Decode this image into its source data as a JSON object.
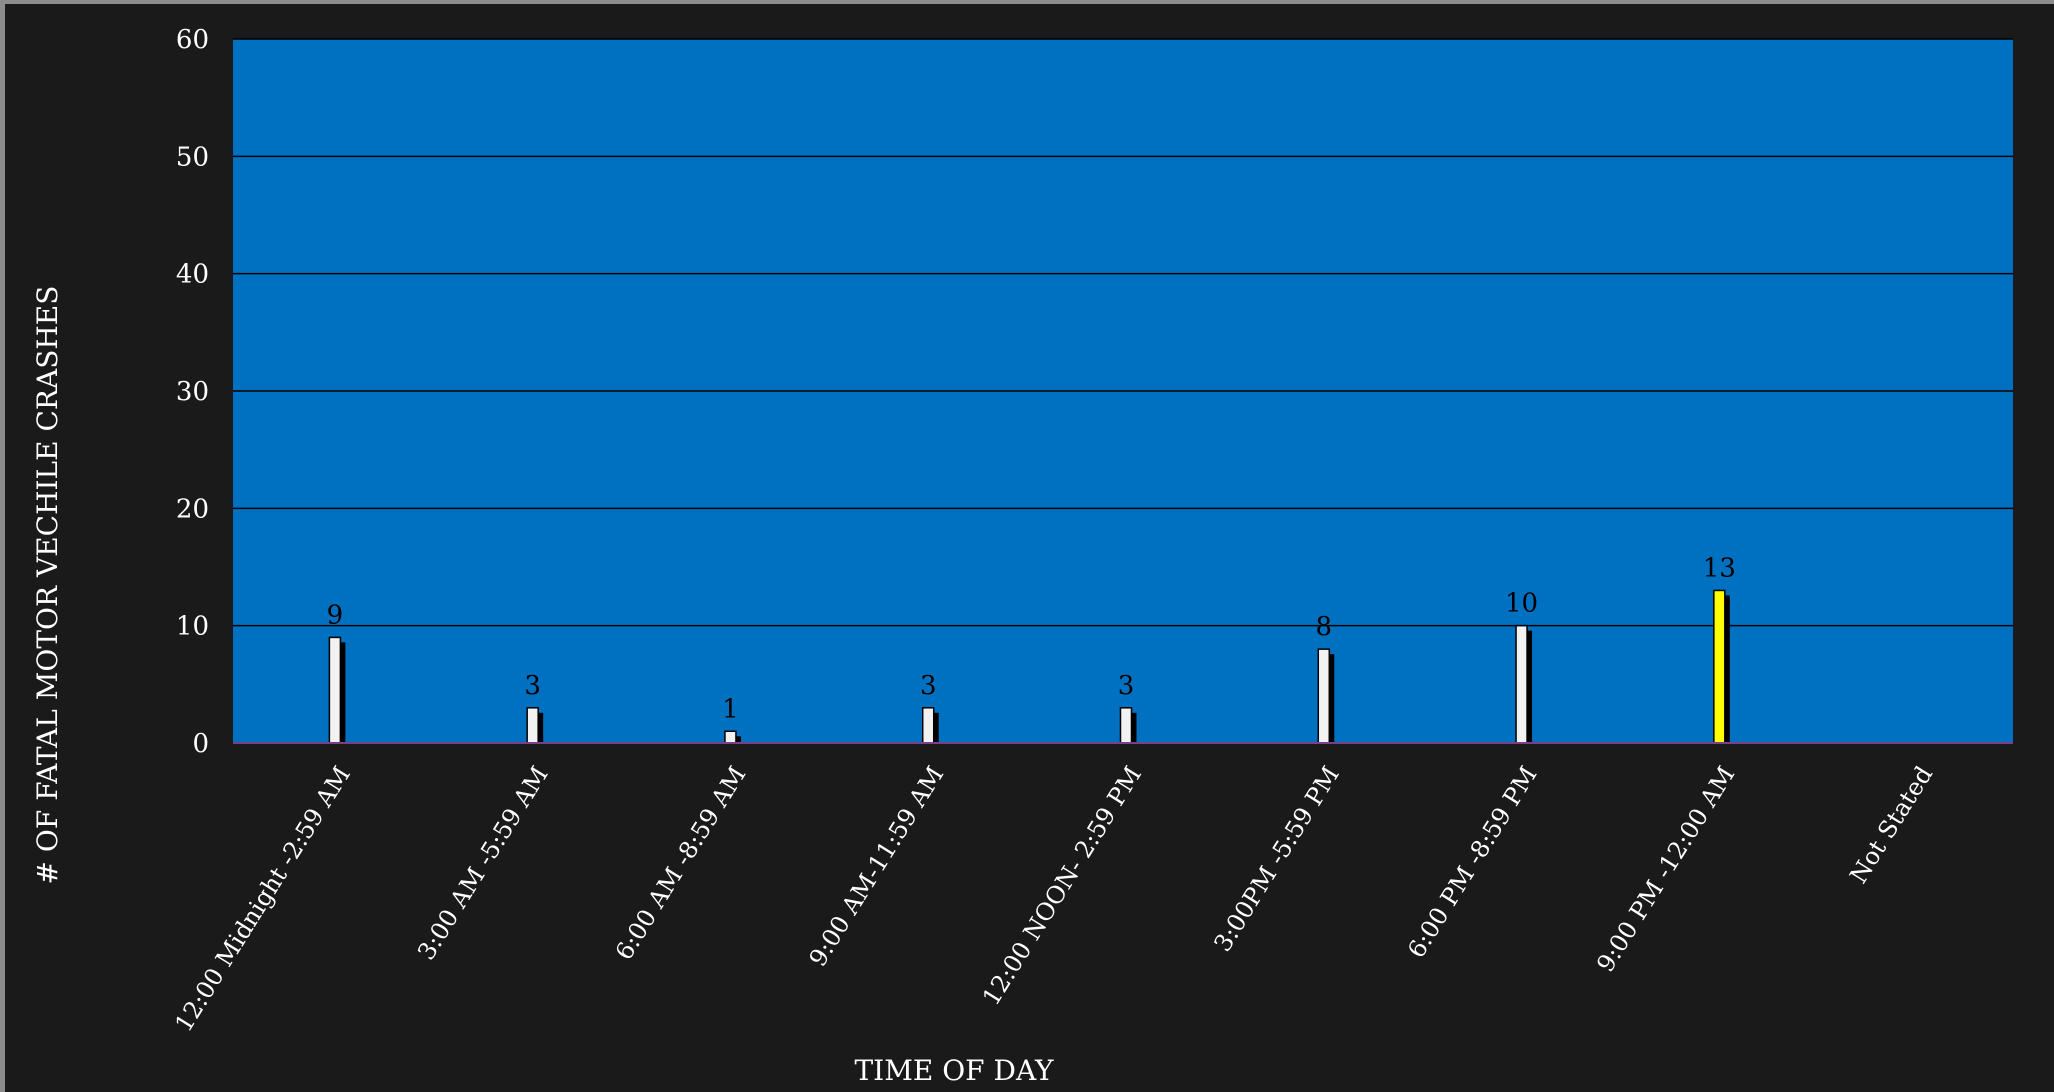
{
  "chart_data": {
    "type": "bar",
    "categories": [
      "12:00 Midnight -2:59 AM",
      "3:00 AM -5:59 AM",
      "6:00 AM -8:59 AM",
      "9:00 AM-11:59 AM",
      "12:00 NOON- 2:59 PM",
      "3:00PM -5:59 PM",
      "6:00 PM -8:59 PM",
      "9:00 PM -12:00 AM",
      "Not Stated"
    ],
    "values": [
      9,
      3,
      1,
      3,
      3,
      8,
      10,
      13,
      null
    ],
    "data_labels": [
      "9",
      "3",
      "1",
      "3",
      "3",
      "8",
      "10",
      "13",
      ""
    ],
    "highlight_index": 7,
    "xlabel": "TIME  OF DAY",
    "ylabel": "# OF  FATAL MOTOR VECHILE CRASHES",
    "ylim": [
      0,
      60
    ],
    "yticks": [
      0,
      10,
      20,
      30,
      40,
      50,
      60
    ],
    "grid": true,
    "legend": "none",
    "colors": {
      "background": "#1a1a1a",
      "plot_area": "#0070c0",
      "bar": "#f2f2f2",
      "bar_highlight": "#ffff00",
      "bar_shadow": "#000000",
      "gridline": "#000000",
      "text": "#ffffff",
      "data_label": "#000000"
    }
  }
}
